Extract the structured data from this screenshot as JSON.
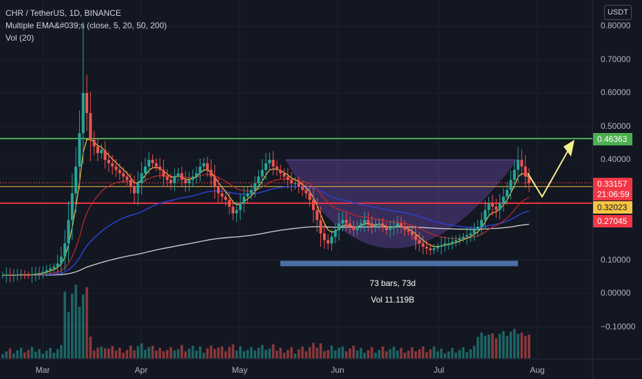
{
  "legend": {
    "symbol_line": "CHR / TetherUS, 1D, BINANCE",
    "ema_line": "Multiple EMA&#039;s (close, 5, 20, 50, 200)",
    "vol_line": "Vol (20)"
  },
  "currency": "USDT",
  "y_axis_ticks": [
    {
      "label": "0.80000",
      "value": 0.8
    },
    {
      "label": "0.70000",
      "value": 0.7
    },
    {
      "label": "0.60000",
      "value": 0.6
    },
    {
      "label": "0.50000",
      "value": 0.5
    },
    {
      "label": "0.40000",
      "value": 0.4
    },
    {
      "label": "0.10000",
      "value": 0.1
    },
    {
      "label": "0.00000",
      "value": 0.0
    },
    {
      "label": "−0.10000",
      "value": -0.1
    }
  ],
  "x_axis_ticks": [
    "Mar",
    "Apr",
    "May",
    "Jun",
    "Jul",
    "Aug"
  ],
  "price_tags": [
    {
      "label": "0.46363",
      "value": 0.46363,
      "bg": "#4caf50",
      "fg": "#ffffff"
    },
    {
      "label": "0.33157",
      "value": 0.33157,
      "bg": "#f23645",
      "fg": "#ffffff"
    },
    {
      "label": "21:06:59",
      "value": 0.305,
      "bg": "#f23645",
      "fg": "#ffffff"
    },
    {
      "label": "0.32023",
      "value": 0.32023,
      "bg": "#f7c544",
      "fg": "#131722"
    },
    {
      "label": "0.27045",
      "value": 0.27045,
      "bg": "#f23645",
      "fg": "#ffffff"
    }
  ],
  "measure": {
    "bars": "73 bars, 73d",
    "volume": "Vol 11.119B"
  },
  "colors": {
    "background": "#131722",
    "up": "#26a69a",
    "down": "#ef5350",
    "resistance": "#4caf50",
    "support": "#f23645",
    "ema5": "#f7c544",
    "ema20": "#c62828",
    "ema50": "#2b3fc7",
    "ema200": "#c8c8c8",
    "cup": "#7e57c2",
    "projection": "#f4f08a",
    "range_bar": "#4a6fa5"
  },
  "chart_data": {
    "type": "candlestick",
    "symbol": "CHR / TetherUS",
    "interval": "1D",
    "ylim": [
      -0.16,
      0.86
    ],
    "horizontal_levels": [
      0.46363,
      0.33157,
      0.32023,
      0.27045
    ],
    "cup_pattern": {
      "top": 0.4,
      "bottom": 0.12
    },
    "approx_closes": [
      0.055,
      0.056,
      0.054,
      0.055,
      0.057,
      0.058,
      0.056,
      0.055,
      0.057,
      0.06,
      0.061,
      0.065,
      0.07,
      0.075,
      0.08,
      0.09,
      0.11,
      0.15,
      0.22,
      0.3,
      0.38,
      0.48,
      0.6,
      0.54,
      0.46,
      0.44,
      0.42,
      0.43,
      0.4,
      0.39,
      0.38,
      0.37,
      0.36,
      0.35,
      0.34,
      0.32,
      0.3,
      0.33,
      0.36,
      0.38,
      0.4,
      0.39,
      0.38,
      0.37,
      0.35,
      0.34,
      0.33,
      0.35,
      0.36,
      0.34,
      0.33,
      0.34,
      0.35,
      0.36,
      0.38,
      0.39,
      0.37,
      0.35,
      0.32,
      0.3,
      0.29,
      0.28,
      0.26,
      0.24,
      0.25,
      0.27,
      0.29,
      0.3,
      0.31,
      0.33,
      0.35,
      0.37,
      0.39,
      0.4,
      0.38,
      0.37,
      0.36,
      0.35,
      0.34,
      0.33,
      0.33,
      0.32,
      0.31,
      0.3,
      0.28,
      0.25,
      0.22,
      0.18,
      0.16,
      0.15,
      0.17,
      0.19,
      0.21,
      0.22,
      0.21,
      0.2,
      0.19,
      0.2,
      0.21,
      0.22,
      0.21,
      0.2,
      0.205,
      0.21,
      0.2,
      0.19,
      0.195,
      0.2,
      0.21,
      0.2,
      0.19,
      0.185,
      0.175,
      0.16,
      0.15,
      0.14,
      0.135,
      0.13,
      0.135,
      0.14,
      0.145,
      0.15,
      0.15,
      0.155,
      0.16,
      0.165,
      0.17,
      0.175,
      0.18,
      0.19,
      0.2,
      0.22,
      0.25,
      0.27,
      0.26,
      0.25,
      0.27,
      0.29,
      0.31,
      0.34,
      0.37,
      0.4,
      0.38,
      0.35,
      0.33
    ],
    "annotations": [
      "73 bars, 73d",
      "Vol 11.119B"
    ]
  }
}
